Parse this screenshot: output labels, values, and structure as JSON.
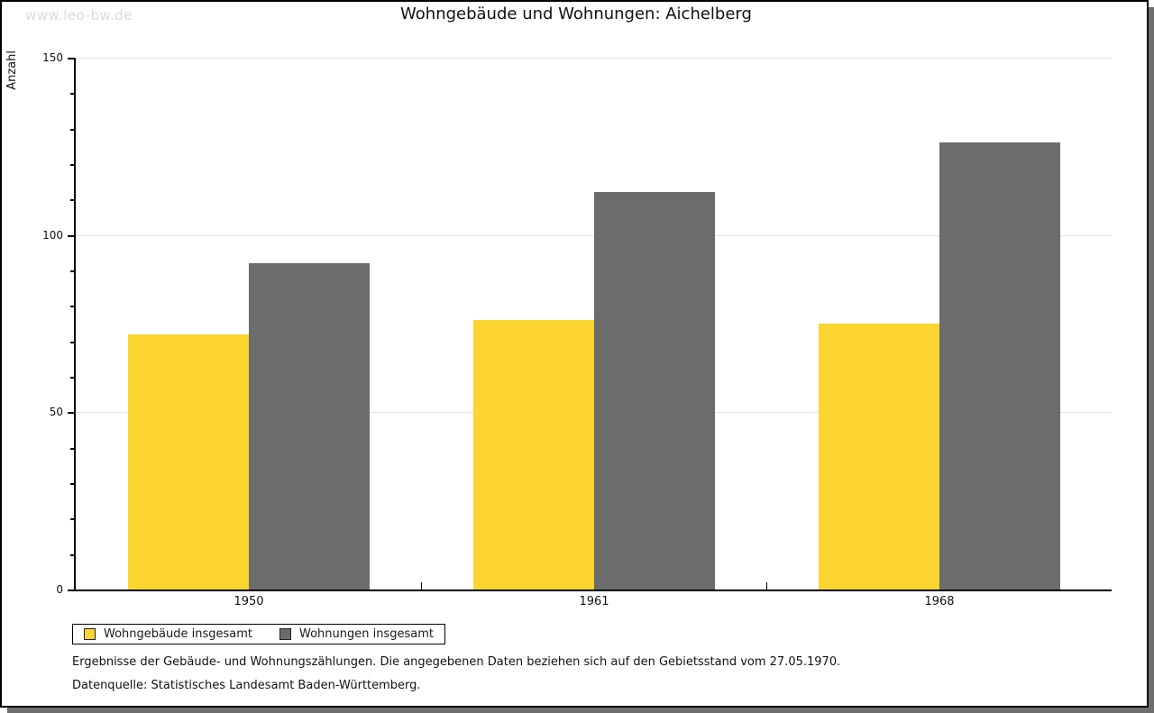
{
  "watermark": "www.leo-bw.de",
  "title": "Wohngebäude und Wohnungen: Aichelberg",
  "chart_data": {
    "type": "bar",
    "title": "Wohngebäude und Wohnungen: Aichelberg",
    "ylabel": "Anzahl",
    "xlabel": "",
    "categories": [
      "1950",
      "1961",
      "1968"
    ],
    "series": [
      {
        "name": "Wohngebäude insgesamt",
        "color": "#FCD530",
        "values": [
          72,
          76,
          75
        ]
      },
      {
        "name": "Wohnungen insgesamt",
        "color": "#6C6C6C",
        "values": [
          92,
          112,
          126
        ]
      }
    ],
    "ylim": [
      0,
      150
    ],
    "yticks": [
      0,
      50,
      100,
      150
    ],
    "minor_tick_step": 10,
    "grid": true,
    "legend_position": "bottom-left"
  },
  "footnotes": {
    "line1": "Ergebnisse der Gebäude- und Wohnungszählungen. Die angegebenen Daten beziehen sich auf den Gebietsstand vom 27.05.1970.",
    "line2": "Datenquelle: Statistisches Landesamt Baden-Württemberg."
  }
}
